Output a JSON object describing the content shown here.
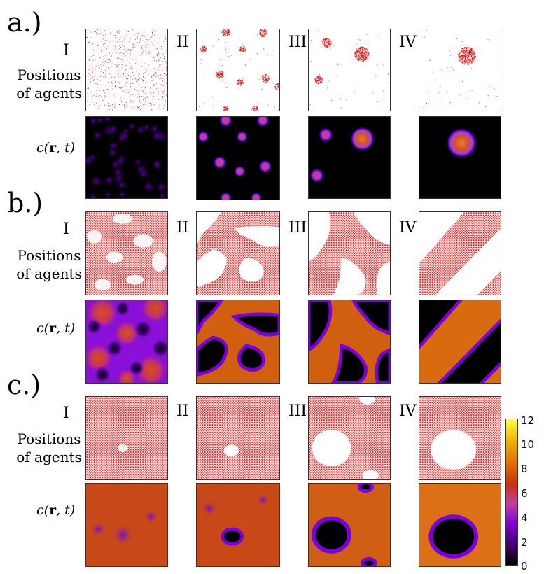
{
  "rows": [
    {
      "label": "a.)",
      "side_top": "I",
      "side_line1": "Positions",
      "side_line2": "of agents",
      "conc_label": {
        "pre": "c(",
        "bold": "r",
        "post": ", t)"
      }
    },
    {
      "label": "b.)",
      "side_top": "I",
      "side_line1": "Positions",
      "side_line2": "of agents",
      "conc_label": {
        "pre": "c(",
        "bold": "r",
        "post": ", t)"
      }
    },
    {
      "label": "c.)",
      "side_top": "I",
      "side_line1": "Positions",
      "side_line2": "of agents",
      "conc_label": {
        "pre": "c(",
        "bold": "r",
        "post": ", t)"
      }
    }
  ],
  "stage_labels": [
    "II",
    "III",
    "IV"
  ],
  "colorbar": {
    "ticks": [
      "12",
      "10",
      "8",
      "6",
      "4",
      "2",
      "0"
    ],
    "colormap": [
      "#000000",
      "#3a0060",
      "#7a00d0",
      "#c040a0",
      "#c83010",
      "#e07000",
      "#f0b000",
      "#ffff40"
    ]
  },
  "colors": {
    "agents": "#e01010",
    "panel_border": "#333333"
  }
}
